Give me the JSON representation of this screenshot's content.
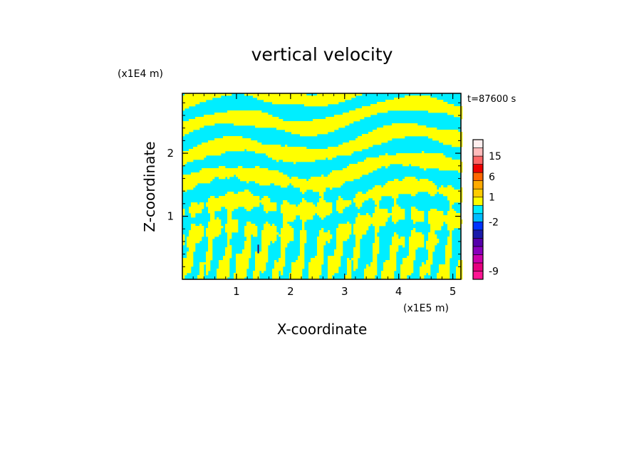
{
  "chart_data": {
    "type": "heatmap",
    "title": "vertical velocity",
    "xlabel": "X-coordinate",
    "ylabel": "Z-coordinate",
    "x_unit": "(x1E5 m)",
    "y_unit": "(x1E4 m)",
    "time_label": "t=87600 s",
    "xlim": [
      0,
      5.15
    ],
    "ylim": [
      0,
      2.95
    ],
    "x_ticks": [
      {
        "value": 1,
        "label": "1"
      },
      {
        "value": 2,
        "label": "2"
      },
      {
        "value": 3,
        "label": "3"
      },
      {
        "value": 4,
        "label": "4"
      },
      {
        "value": 5,
        "label": "5"
      }
    ],
    "y_ticks": [
      {
        "value": 1,
        "label": "1"
      },
      {
        "value": 2,
        "label": "2"
      }
    ],
    "field_colors": {
      "positive": "#ffff00",
      "negative": "#00eeff",
      "strong_negative": "#330066"
    },
    "colorbar": {
      "levels": [
        {
          "color": "#ff1493"
        },
        {
          "color": "#e6007e"
        },
        {
          "color": "#cc00aa"
        },
        {
          "color": "#8800bb"
        },
        {
          "color": "#5500aa"
        },
        {
          "color": "#1a1aaa"
        },
        {
          "color": "#0033ff"
        },
        {
          "color": "#00bbff"
        },
        {
          "color": "#00eeff"
        },
        {
          "color": "#ffff00"
        },
        {
          "color": "#ffcc00"
        },
        {
          "color": "#ffaa00"
        },
        {
          "color": "#ff6600"
        },
        {
          "color": "#ee0000"
        },
        {
          "color": "#ff6666"
        },
        {
          "color": "#ffbbbb"
        },
        {
          "color": "#ffeeee"
        }
      ],
      "tick_labels": [
        {
          "label": "-9",
          "level": 1
        },
        {
          "label": "-2",
          "level": 7
        },
        {
          "label": "1",
          "level": 10
        },
        {
          "label": "6",
          "level": 12.5
        },
        {
          "label": "15",
          "level": 15
        }
      ]
    }
  }
}
